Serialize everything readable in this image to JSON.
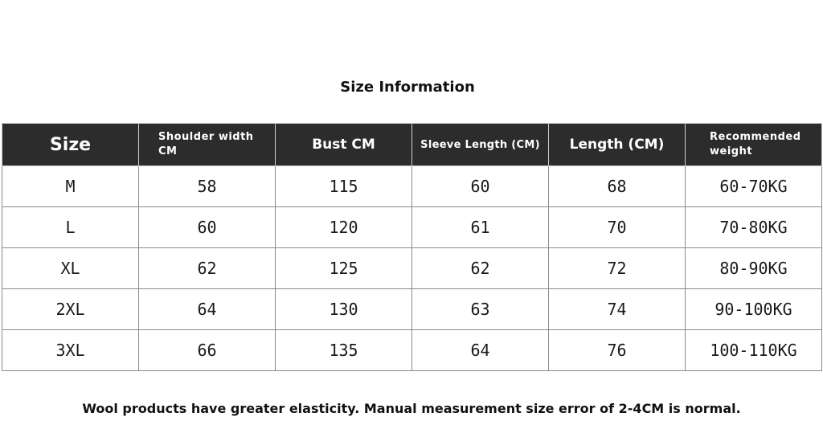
{
  "title": "Size Information",
  "table": {
    "headers": [
      "Size",
      "Shoulder width CM",
      "Bust CM",
      "Sleeve Length (CM)",
      "Length (CM)",
      "Recommended weight"
    ],
    "rows": [
      [
        "M",
        "58",
        "115",
        "60",
        "68",
        "60-70KG"
      ],
      [
        "L",
        "60",
        "120",
        "61",
        "70",
        "70-80KG"
      ],
      [
        "XL",
        "62",
        "125",
        "62",
        "72",
        "80-90KG"
      ],
      [
        "2XL",
        "64",
        "130",
        "63",
        "74",
        "90-100KG"
      ],
      [
        "3XL",
        "66",
        "135",
        "64",
        "76",
        "100-110KG"
      ]
    ]
  },
  "footer_note": "Wool products have greater elasticity. Manual measurement size error of 2-4CM is normal.",
  "colors": {
    "header_background": "#2c2c2c",
    "header_text": "#ffffff",
    "border": "#8a8a8a",
    "text": "#111111"
  }
}
